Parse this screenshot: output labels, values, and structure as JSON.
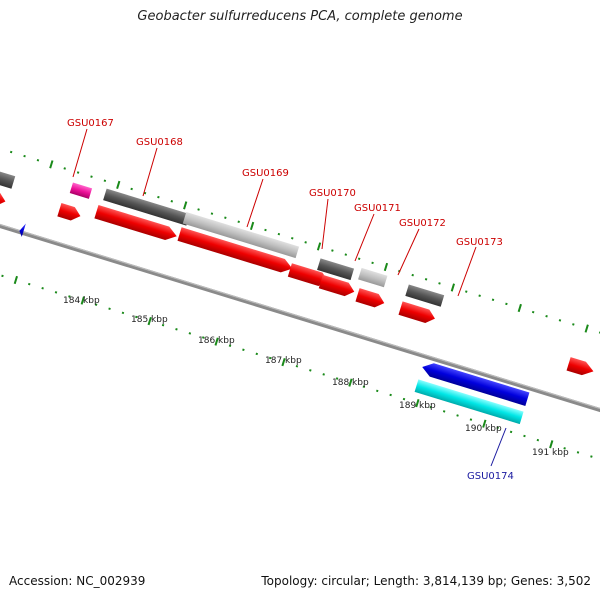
{
  "title": "Geobacter sulfurreducens PCA, complete genome",
  "footer": {
    "accession": "Accession: NC_002939",
    "topology": "Topology: circular; Length: 3,814,139 bp; Genes: 3,502"
  },
  "scale_labels": [
    "184 kbp",
    "185 kbp",
    "186 kbp",
    "187 kbp",
    "188 kbp",
    "189 kbp",
    "190 kbp",
    "191 kbp"
  ],
  "gene_labels": [
    {
      "name": "GSU0167",
      "strand": "forward"
    },
    {
      "name": "GSU0168",
      "strand": "forward"
    },
    {
      "name": "GSU0169",
      "strand": "forward"
    },
    {
      "name": "GSU0170",
      "strand": "forward"
    },
    {
      "name": "GSU0171",
      "strand": "forward"
    },
    {
      "name": "GSU0172",
      "strand": "forward"
    },
    {
      "name": "GSU0173",
      "strand": "forward"
    },
    {
      "name": "GSU0174",
      "strand": "reverse"
    }
  ],
  "colors": {
    "forward_cds": "#ee0000",
    "reverse_cds": "#0000dd",
    "gene_dark": "#555555",
    "gene_light": "#c0c0c0",
    "gene_pink": "#ee1199",
    "gene_cyan": "#00e6e6",
    "backbone": "#888888",
    "tick": "#1a8a1a",
    "forward_label": "#cc0000",
    "reverse_label": "#1a1aa0"
  }
}
